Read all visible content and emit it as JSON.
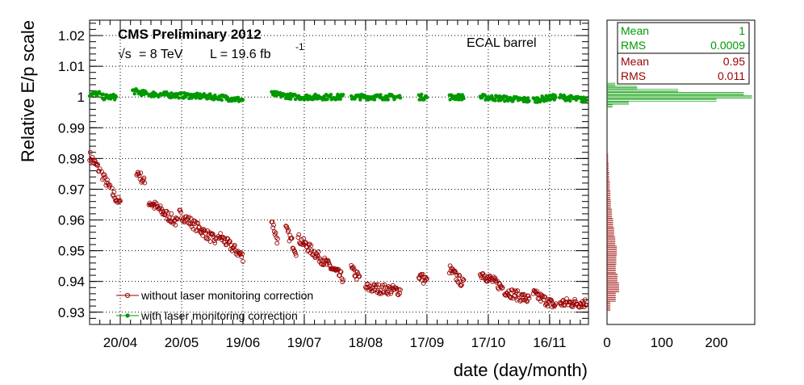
{
  "chart_data": {
    "type": "scatter",
    "title": "CMS Preliminary 2012",
    "energy_label": "= 8 TeV",
    "sqrt_s_symbol": "√s",
    "lumi_label": "L = 19.6 fb",
    "lumi_exponent": "-1",
    "region_label": "ECAL barrel",
    "xlabel": "date (day/month)",
    "ylabel": "Relative E/p scale",
    "xlim": [
      "2012-04-05",
      "2012-12-05"
    ],
    "ylim": [
      0.926,
      1.025
    ],
    "x_ticks": [
      {
        "date": "2012-04-20",
        "label": "20/04"
      },
      {
        "date": "2012-05-20",
        "label": "20/05"
      },
      {
        "date": "2012-06-19",
        "label": "19/06"
      },
      {
        "date": "2012-07-19",
        "label": "19/07"
      },
      {
        "date": "2012-08-18",
        "label": "18/08"
      },
      {
        "date": "2012-09-17",
        "label": "17/09"
      },
      {
        "date": "2012-10-17",
        "label": "17/10"
      },
      {
        "date": "2012-11-16",
        "label": "16/11"
      }
    ],
    "y_ticks": [
      0.93,
      0.94,
      0.95,
      0.96,
      0.97,
      0.98,
      0.99,
      1,
      1.01,
      1.02
    ],
    "y_tick_labels": [
      "0.93",
      "0.94",
      "0.95",
      "0.96",
      "0.97",
      "0.98",
      "0.99",
      "1",
      "1.01",
      "1.02"
    ],
    "grid": true,
    "legend_position": "bottom-left",
    "series": [
      {
        "name": "without laser monitoring correction",
        "color": "#990000",
        "marker": "open-circle",
        "segments": [
          {
            "start": "2012-04-05",
            "end": "2012-04-10",
            "y_start": 0.981,
            "y_end": 0.976
          },
          {
            "start": "2012-04-11",
            "end": "2012-04-15",
            "y_start": 0.975,
            "y_end": 0.97
          },
          {
            "start": "2012-04-16",
            "end": "2012-04-20",
            "y_start": 0.969,
            "y_end": 0.965
          },
          {
            "start": "2012-04-28",
            "end": "2012-05-02",
            "y_start": 0.976,
            "y_end": 0.972
          },
          {
            "start": "2012-05-04",
            "end": "2012-05-18",
            "y_start": 0.966,
            "y_end": 0.959
          },
          {
            "start": "2012-05-19",
            "end": "2012-06-06",
            "y_start": 0.962,
            "y_end": 0.953
          },
          {
            "start": "2012-06-07",
            "end": "2012-06-19",
            "y_start": 0.955,
            "y_end": 0.948
          },
          {
            "start": "2012-07-03",
            "end": "2012-07-06",
            "y_start": 0.96,
            "y_end": 0.953
          },
          {
            "start": "2012-07-10",
            "end": "2012-07-15",
            "y_start": 0.957,
            "y_end": 0.95
          },
          {
            "start": "2012-07-16",
            "end": "2012-08-07",
            "y_start": 0.954,
            "y_end": 0.941
          },
          {
            "start": "2012-08-11",
            "end": "2012-08-15",
            "y_start": 0.944,
            "y_end": 0.941
          },
          {
            "start": "2012-08-18",
            "end": "2012-09-04",
            "y_start": 0.938,
            "y_end": 0.937
          },
          {
            "start": "2012-09-13",
            "end": "2012-09-17",
            "y_start": 0.942,
            "y_end": 0.94
          },
          {
            "start": "2012-09-28",
            "end": "2012-10-05",
            "y_start": 0.944,
            "y_end": 0.939
          },
          {
            "start": "2012-10-13",
            "end": "2012-10-24",
            "y_start": 0.943,
            "y_end": 0.938
          },
          {
            "start": "2012-10-25",
            "end": "2012-11-06",
            "y_start": 0.937,
            "y_end": 0.934
          },
          {
            "start": "2012-11-08",
            "end": "2012-11-19",
            "y_start": 0.936,
            "y_end": 0.932
          },
          {
            "start": "2012-11-21",
            "end": "2012-12-04",
            "y_start": 0.933,
            "y_end": 0.933
          }
        ]
      },
      {
        "name": "with laser monitoring correction",
        "color": "#009900",
        "marker": "filled-circle",
        "segments": [
          {
            "start": "2012-04-05",
            "end": "2012-04-10",
            "y_start": 1.001,
            "y_end": 1.001
          },
          {
            "start": "2012-04-11",
            "end": "2012-04-18",
            "y_start": 1.0,
            "y_end": 1.0
          },
          {
            "start": "2012-04-26",
            "end": "2012-05-03",
            "y_start": 1.002,
            "y_end": 1.001
          },
          {
            "start": "2012-05-04",
            "end": "2012-06-06",
            "y_start": 1.001,
            "y_end": 1.0
          },
          {
            "start": "2012-06-07",
            "end": "2012-06-19",
            "y_start": 1.0,
            "y_end": 0.999
          },
          {
            "start": "2012-07-03",
            "end": "2012-07-15",
            "y_start": 1.001,
            "y_end": 1.0
          },
          {
            "start": "2012-07-16",
            "end": "2012-08-07",
            "y_start": 1.0,
            "y_end": 1.0
          },
          {
            "start": "2012-08-11",
            "end": "2012-09-04",
            "y_start": 1.0,
            "y_end": 1.0
          },
          {
            "start": "2012-09-13",
            "end": "2012-09-17",
            "y_start": 1.0,
            "y_end": 1.0
          },
          {
            "start": "2012-09-28",
            "end": "2012-10-05",
            "y_start": 1.0,
            "y_end": 1.0
          },
          {
            "start": "2012-10-13",
            "end": "2012-11-06",
            "y_start": 1.0,
            "y_end": 0.999
          },
          {
            "start": "2012-11-08",
            "end": "2012-11-19",
            "y_start": 0.999,
            "y_end": 1.0
          },
          {
            "start": "2012-11-21",
            "end": "2012-12-04",
            "y_start": 1.0,
            "y_end": 0.999
          }
        ]
      }
    ],
    "side_histogram": {
      "xlim": [
        0,
        270
      ],
      "x_ticks": [
        0,
        100,
        200
      ],
      "x_tick_labels": [
        "0",
        "100",
        "200"
      ],
      "orientation": "horizontal",
      "stats": [
        {
          "series": "with laser monitoring correction",
          "color": "#009900",
          "mean_label": "Mean",
          "mean_value": "1",
          "rms_label": "RMS",
          "rms_value": "0.0009"
        },
        {
          "series": "without laser monitoring correction",
          "color": "#990000",
          "mean_label": "Mean",
          "mean_value": "0.95",
          "rms_label": "RMS",
          "rms_value": "0.011"
        }
      ],
      "corrected_bins": [
        {
          "y": 1.004,
          "count": 15
        },
        {
          "y": 1.003,
          "count": 55
        },
        {
          "y": 1.002,
          "count": 130
        },
        {
          "y": 1.001,
          "count": 250
        },
        {
          "y": 1.0,
          "count": 265
        },
        {
          "y": 0.999,
          "count": 200
        },
        {
          "y": 0.998,
          "count": 40
        },
        {
          "y": 0.997,
          "count": 10
        }
      ],
      "uncorrected_bins": [
        {
          "y": 0.98,
          "count": 2
        },
        {
          "y": 0.977,
          "count": 3
        },
        {
          "y": 0.974,
          "count": 4
        },
        {
          "y": 0.971,
          "count": 5
        },
        {
          "y": 0.968,
          "count": 6
        },
        {
          "y": 0.965,
          "count": 7
        },
        {
          "y": 0.962,
          "count": 9
        },
        {
          "y": 0.959,
          "count": 11
        },
        {
          "y": 0.956,
          "count": 13
        },
        {
          "y": 0.953,
          "count": 15
        },
        {
          "y": 0.95,
          "count": 18
        },
        {
          "y": 0.947,
          "count": 17
        },
        {
          "y": 0.944,
          "count": 16
        },
        {
          "y": 0.941,
          "count": 19
        },
        {
          "y": 0.938,
          "count": 22
        },
        {
          "y": 0.935,
          "count": 16
        },
        {
          "y": 0.932,
          "count": 6
        }
      ]
    }
  }
}
